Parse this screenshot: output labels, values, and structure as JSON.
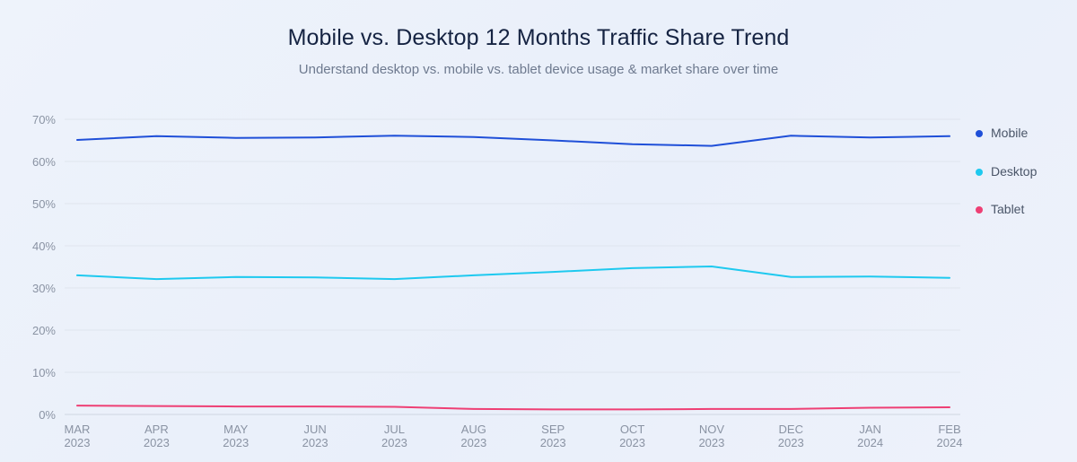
{
  "chart_data": {
    "type": "line",
    "title": "Mobile vs. Desktop 12 Months Traffic Share Trend",
    "subtitle": "Understand desktop vs. mobile vs. tablet device usage & market share over time",
    "xlabel": "",
    "ylabel": "",
    "ylim": [
      0,
      70
    ],
    "yticks": [
      0,
      10,
      20,
      30,
      40,
      50,
      60,
      70
    ],
    "ytick_suffix": "%",
    "grid": true,
    "legend_position": "right",
    "categories": [
      {
        "month": "MAR",
        "year": "2023"
      },
      {
        "month": "APR",
        "year": "2023"
      },
      {
        "month": "MAY",
        "year": "2023"
      },
      {
        "month": "JUN",
        "year": "2023"
      },
      {
        "month": "JUL",
        "year": "2023"
      },
      {
        "month": "AUG",
        "year": "2023"
      },
      {
        "month": "SEP",
        "year": "2023"
      },
      {
        "month": "OCT",
        "year": "2023"
      },
      {
        "month": "NOV",
        "year": "2023"
      },
      {
        "month": "DEC",
        "year": "2023"
      },
      {
        "month": "JAN",
        "year": "2024"
      },
      {
        "month": "FEB",
        "year": "2024"
      }
    ],
    "series": [
      {
        "name": "Mobile",
        "color": "#1f4fd8",
        "values": [
          65.1,
          66.0,
          65.6,
          65.7,
          66.1,
          65.8,
          65.0,
          64.1,
          63.7,
          66.1,
          65.7,
          66.0
        ]
      },
      {
        "name": "Desktop",
        "color": "#1ec9ef",
        "values": [
          33.0,
          32.1,
          32.6,
          32.5,
          32.1,
          33.0,
          33.8,
          34.7,
          35.1,
          32.6,
          32.7,
          32.4
        ]
      },
      {
        "name": "Tablet",
        "color": "#ee3f74",
        "values": [
          2.1,
          2.0,
          1.9,
          1.9,
          1.8,
          1.3,
          1.2,
          1.2,
          1.3,
          1.3,
          1.6,
          1.7
        ]
      }
    ]
  }
}
